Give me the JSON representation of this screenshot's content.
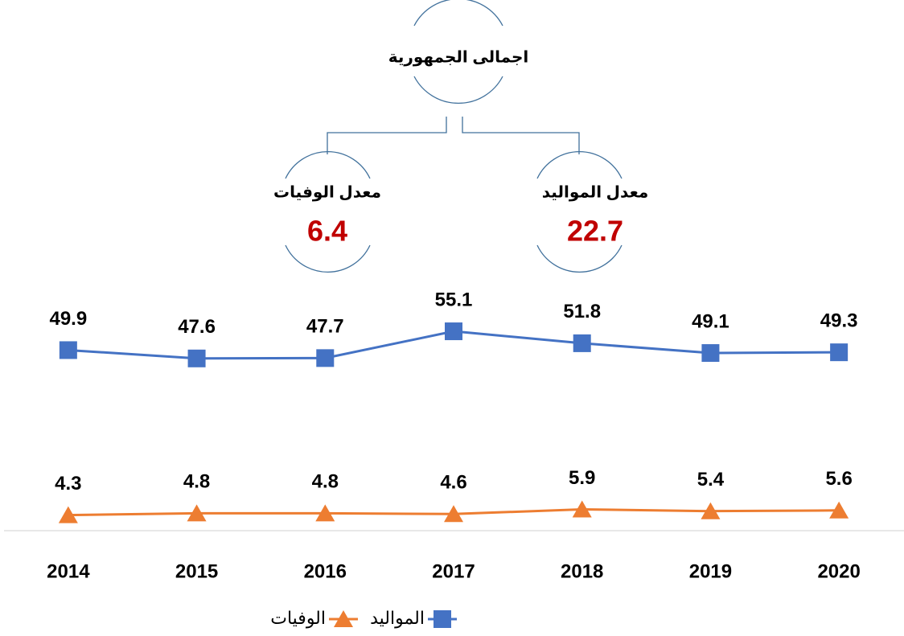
{
  "chart_data": {
    "type": "line",
    "annotations": {
      "total_title": "اجمالى الجمهورية",
      "deaths_label": "معدل الوفيات",
      "deaths_value": 6.4,
      "births_label": "معدل المواليد",
      "births_value": 22.7
    },
    "categories": [
      "2014",
      "2015",
      "2016",
      "2017",
      "2018",
      "2019",
      "2020"
    ],
    "series": [
      {
        "name": "المواليد",
        "color": "#4472c4",
        "marker": "square",
        "values": [
          49.9,
          47.6,
          47.7,
          55.1,
          51.8,
          49.1,
          49.3
        ]
      },
      {
        "name": "الوفيات",
        "color": "#ed7d31",
        "marker": "triangle",
        "values": [
          4.3,
          4.8,
          4.8,
          4.6,
          5.9,
          5.4,
          5.6
        ]
      }
    ],
    "ylim": [
      0,
      140
    ],
    "grid": false
  }
}
